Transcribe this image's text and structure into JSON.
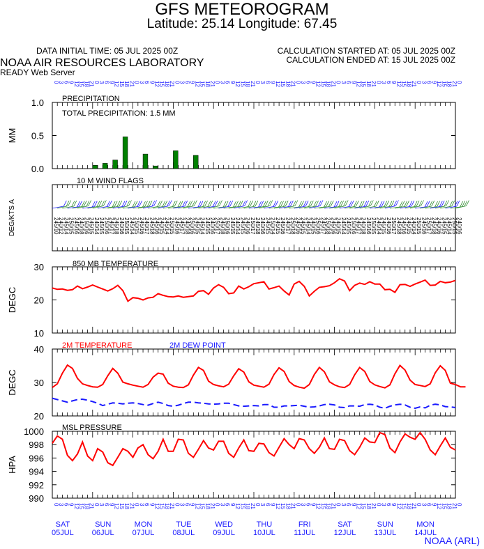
{
  "header": {
    "title": "GFS METEOROGRAM",
    "subtitle": "Latitude: 25.14 Longitude:  67.45",
    "initial_time": "DATA INITIAL TIME: 05 JUL 2025 00Z",
    "calc_started": "CALCULATION STARTED AT: 05 JUL 2025 00Z",
    "calc_ended": "CALCULATION ENDED AT: 15 JUL 2025 00Z",
    "org": "NOAA AIR RESOURCES LABORATORY",
    "server": "READY Web Server",
    "footer": "NOAA (ARL)"
  },
  "colors": {
    "red": "#ff0000",
    "blue": "#1a1aff",
    "green": "#008000",
    "barb_green": "#2e8b2e"
  },
  "days": [
    {
      "dow": "SAT",
      "date": "05JUL"
    },
    {
      "dow": "SUN",
      "date": "06JUL"
    },
    {
      "dow": "MON",
      "date": "07JUL"
    },
    {
      "dow": "TUE",
      "date": "08JUL"
    },
    {
      "dow": "WED",
      "date": "09JUL"
    },
    {
      "dow": "THU",
      "date": "10JUL"
    },
    {
      "dow": "FRI",
      "date": "11JUL"
    },
    {
      "dow": "SAT",
      "date": "12JUL"
    },
    {
      "dow": "SUN",
      "date": "13JUL"
    },
    {
      "dow": "MON",
      "date": "14JUL"
    }
  ],
  "hour_labels": [
    "0",
    "3",
    "6",
    "9",
    "12",
    "15",
    "18",
    "21"
  ],
  "chart_data": [
    {
      "id": "precip",
      "type": "bar",
      "title": "PRECIPITATION",
      "annotation": "TOTAL PRECIPITATION:   1.5 MM",
      "ylabel": "MM",
      "ylim": [
        0,
        1
      ],
      "yticks": [
        "1.0",
        "0.5",
        "0.0"
      ],
      "x_hours": [
        24,
        30,
        36,
        42,
        54,
        60,
        72,
        84,
        90
      ],
      "values": [
        0.05,
        0.08,
        0.13,
        0.48,
        0.22,
        0.04,
        0.27,
        0.2,
        0.0
      ]
    },
    {
      "id": "wind",
      "type": "barbs",
      "title": "10 M  WIND FLAGS",
      "ylabel": "DEG/KTS  A",
      "directions_deg": [
        245,
        240,
        245,
        250,
        245,
        240,
        250,
        245,
        240,
        245,
        250,
        245,
        245,
        240,
        250,
        245,
        250,
        245,
        240,
        245,
        245,
        240,
        245,
        250,
        245,
        245,
        240,
        250,
        245,
        245,
        245,
        240,
        250,
        245,
        250,
        245,
        240,
        245,
        245,
        250,
        245,
        240,
        245,
        250,
        245,
        245,
        240,
        250,
        245,
        245,
        245,
        240,
        250,
        245,
        250,
        245,
        240,
        245,
        245,
        250,
        245,
        240,
        245,
        250,
        245,
        245,
        240,
        250,
        245,
        245,
        245,
        240,
        250,
        245,
        250,
        245,
        240,
        245,
        245,
        250,
        240
      ],
      "speeds_kts": [
        10,
        12,
        14,
        15,
        16,
        18,
        16,
        15,
        14,
        15,
        16,
        17,
        18,
        16,
        15,
        14,
        15,
        16,
        17,
        18,
        16,
        15,
        14,
        15,
        16,
        17,
        18,
        16,
        15,
        14,
        15,
        16,
        17,
        18,
        16,
        15,
        14,
        15,
        16,
        17,
        18,
        16,
        15,
        14,
        15,
        16,
        17,
        18,
        16,
        15,
        14,
        15,
        16,
        17,
        18,
        16,
        15,
        14,
        15,
        16,
        17,
        18,
        16,
        15,
        14,
        15,
        16,
        17,
        18,
        16,
        15,
        14,
        15,
        16,
        17,
        18,
        16,
        15,
        14,
        15,
        16
      ]
    },
    {
      "id": "t850",
      "type": "line",
      "title": "850 MB  TEMPERATURE",
      "ylabel": "DEGC",
      "ylim": [
        10,
        30
      ],
      "yticks": [
        "30",
        "20",
        "10"
      ],
      "series": [
        {
          "color": "#ff0000",
          "values": [
            23.6,
            23.2,
            23.3,
            22.9,
            23.1,
            24.2,
            23.4,
            23.9,
            24.5,
            23.9,
            23.3,
            22.7,
            23.4,
            24.4,
            22.8,
            19.6,
            20.7,
            20.5,
            20.0,
            20.6,
            20.8,
            21.9,
            21.4,
            21.0,
            20.9,
            21.2,
            20.8,
            21.0,
            21.2,
            22.6,
            22.8,
            21.7,
            23.6,
            24.6,
            23.8,
            21.9,
            22.1,
            24.2,
            23.3,
            24.0,
            24.9,
            25.2,
            25.5,
            23.3,
            23.7,
            24.2,
            22.7,
            21.5,
            24.8,
            25.6,
            24.1,
            21.2,
            22.6,
            23.8,
            24.0,
            24.3,
            25.2,
            26.4,
            25.7,
            22.8,
            24.4,
            25.1,
            24.7,
            25.5,
            24.8,
            24.8,
            23.1,
            23.2,
            22.3,
            24.6,
            24.7,
            24.1,
            24.8,
            25.4,
            26.0,
            24.4,
            24.5,
            25.6,
            25.2,
            25.4,
            25.9
          ]
        }
      ]
    },
    {
      "id": "t2m",
      "type": "line",
      "title": "2M TEMPERATURE",
      "title2": "2M   DEW POINT",
      "ylabel": "DEGC",
      "ylim": [
        20,
        40
      ],
      "yticks": [
        "40",
        "30",
        "20"
      ],
      "series": [
        {
          "name": "2M TEMPERATURE",
          "color": "#ff0000",
          "values": [
            28.5,
            29.6,
            32.8,
            35.2,
            34.2,
            31.2,
            29.6,
            29.1,
            28.7,
            28.6,
            29.4,
            32.0,
            34.2,
            32.8,
            30.1,
            29.6,
            29.2,
            28.9,
            28.6,
            29.4,
            31.6,
            32.8,
            32.5,
            29.8,
            28.9,
            28.6,
            28.5,
            29.3,
            32.2,
            34.5,
            33.6,
            30.4,
            29.4,
            29.0,
            28.7,
            29.5,
            32.0,
            34.1,
            33.1,
            30.2,
            29.2,
            28.9,
            28.6,
            29.5,
            32.4,
            34.4,
            33.3,
            30.3,
            29.1,
            28.6,
            28.3,
            29.4,
            32.4,
            34.5,
            33.2,
            30.2,
            29.3,
            28.7,
            28.5,
            29.4,
            32.3,
            34.5,
            33.3,
            30.3,
            29.3,
            28.8,
            28.4,
            29.3,
            32.6,
            35.1,
            33.7,
            30.7,
            29.4,
            29.1,
            28.8,
            29.6,
            32.9,
            35.0,
            33.6,
            29.8,
            29.4,
            28.7,
            28.7
          ]
        },
        {
          "name": "2M   DEW POINT",
          "color": "#1a1aff",
          "values": [
            25.3,
            24.9,
            24.5,
            24.1,
            24.5,
            24.9,
            25.0,
            24.7,
            24.3,
            23.8,
            23.1,
            23.5,
            23.9,
            23.8,
            23.6,
            23.8,
            23.9,
            23.7,
            23.4,
            23.2,
            23.7,
            24.1,
            23.7,
            23.1,
            22.9,
            23.2,
            23.7,
            24.1,
            24.1,
            23.9,
            23.8,
            23.6,
            23.5,
            23.6,
            23.8,
            23.8,
            23.4,
            23.0,
            22.9,
            23.0,
            23.1,
            23.0,
            23.4,
            23.4,
            22.6,
            22.6,
            23.0,
            23.0,
            23.1,
            23.2,
            22.9,
            22.6,
            22.7,
            23.0,
            23.4,
            23.5,
            23.3,
            22.6,
            22.5,
            23.0,
            23.0,
            22.9,
            23.4,
            23.5,
            23.3,
            22.6,
            22.3,
            22.9,
            23.3,
            23.5,
            23.3,
            22.6,
            22.3,
            22.7,
            22.4,
            23.2,
            23.5,
            23.3,
            22.8,
            22.7,
            22.5
          ]
        }
      ]
    },
    {
      "id": "mslp",
      "type": "line",
      "title": "MSL PRESSURE",
      "ylabel": "HPA",
      "ylim": [
        990,
        1000
      ],
      "yticks": [
        "1000",
        "998",
        "996",
        "994",
        "992",
        "990"
      ],
      "series": [
        {
          "color": "#ff0000",
          "values": [
            998.2,
            999.3,
            998.8,
            996.4,
            995.6,
            996.6,
            998.4,
            996.3,
            995.6,
            997.4,
            996.9,
            995.3,
            994.9,
            996.1,
            997.4,
            997.0,
            996.1,
            997.5,
            998.0,
            996.5,
            995.9,
            997.0,
            998.8,
            997.0,
            997.0,
            998.8,
            998.7,
            996.7,
            996.1,
            997.3,
            998.6,
            997.5,
            997.2,
            998.5,
            998.5,
            996.7,
            996.1,
            997.5,
            998.7,
            997.1,
            997.0,
            998.2,
            998.1,
            996.8,
            996.3,
            997.6,
            998.9,
            998.0,
            997.4,
            998.9,
            998.7,
            997.4,
            996.7,
            997.6,
            999.0,
            997.4,
            997.3,
            998.8,
            998.6,
            997.1,
            996.5,
            997.6,
            999.0,
            998.4,
            998.3,
            999.8,
            999.5,
            997.5,
            996.8,
            998.4,
            999.6,
            999.1,
            998.8,
            999.8,
            998.8,
            997.2,
            996.5,
            997.8,
            999.0,
            997.6,
            997.2
          ]
        }
      ]
    }
  ]
}
